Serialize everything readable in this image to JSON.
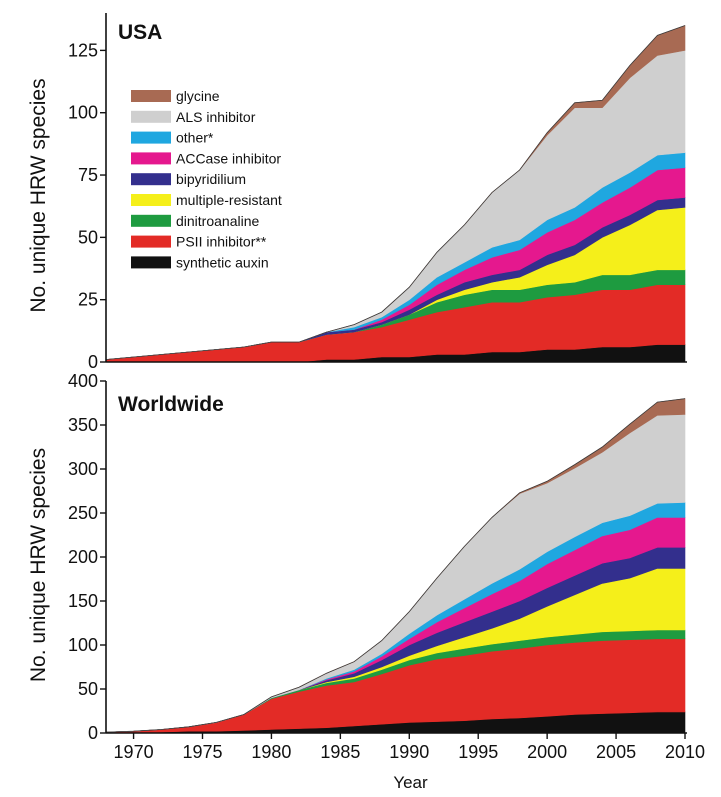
{
  "chart_data": [
    {
      "type": "area",
      "stacked": true,
      "title": "USA",
      "xlabel": "",
      "ylabel": "No. unique HRW species",
      "xlim": [
        1968,
        2010
      ],
      "ylim": [
        0,
        140
      ],
      "yticks": [
        0,
        25,
        50,
        75,
        100,
        125
      ],
      "grid": false,
      "legend_placement": "top-left",
      "x": [
        1968,
        1970,
        1972,
        1974,
        1976,
        1978,
        1980,
        1982,
        1984,
        1986,
        1988,
        1990,
        1992,
        1994,
        1996,
        1998,
        2000,
        2002,
        2004,
        2006,
        2008,
        2010
      ],
      "series": [
        {
          "name": "synthetic auxin",
          "color": "#111111",
          "values": [
            0,
            0,
            0,
            0,
            0,
            0,
            0,
            0,
            1,
            1,
            2,
            2,
            3,
            3,
            4,
            4,
            5,
            5,
            6,
            6,
            7,
            7
          ]
        },
        {
          "name": "PSII inhibitor**",
          "color": "#e32b26",
          "values": [
            1,
            2,
            3,
            4,
            5,
            6,
            8,
            8,
            10,
            11,
            12,
            15,
            17,
            19,
            20,
            20,
            21,
            22,
            23,
            23,
            24,
            24
          ]
        },
        {
          "name": "dinitroanaline",
          "color": "#1e9b40",
          "values": [
            0,
            0,
            0,
            0,
            0,
            0,
            0,
            0,
            0,
            0,
            1,
            2,
            4,
            5,
            5,
            5,
            5,
            5,
            6,
            6,
            6,
            6
          ]
        },
        {
          "name": "multiple-resistant",
          "color": "#f5ef1a",
          "values": [
            0,
            0,
            0,
            0,
            0,
            0,
            0,
            0,
            0,
            0,
            0,
            0,
            1,
            2,
            3,
            5,
            8,
            11,
            15,
            20,
            24,
            25
          ]
        },
        {
          "name": "bipyridilium",
          "color": "#332f8d",
          "values": [
            0,
            0,
            0,
            0,
            0,
            0,
            0,
            0,
            1,
            1,
            1,
            2,
            2,
            3,
            3,
            3,
            4,
            4,
            4,
            4,
            4,
            4
          ]
        },
        {
          "name": "ACCase inhibitor",
          "color": "#e5188e",
          "values": [
            0,
            0,
            0,
            0,
            0,
            0,
            0,
            0,
            0,
            0,
            1,
            2,
            4,
            5,
            7,
            8,
            9,
            10,
            10,
            11,
            12,
            12
          ]
        },
        {
          "name": "other*",
          "color": "#1fa7e0",
          "values": [
            0,
            0,
            0,
            0,
            0,
            0,
            0,
            0,
            0,
            1,
            1,
            2,
            3,
            3,
            4,
            4,
            5,
            5,
            6,
            6,
            6,
            6
          ]
        },
        {
          "name": "ALS inhibitor",
          "color": "#cfcfcf",
          "values": [
            0,
            0,
            0,
            0,
            0,
            0,
            0,
            0,
            0,
            1,
            2,
            5,
            10,
            15,
            22,
            28,
            34,
            40,
            32,
            38,
            40,
            41
          ]
        },
        {
          "name": "glycine",
          "color": "#a86a53",
          "values": [
            0,
            0,
            0,
            0,
            0,
            0,
            0,
            0,
            0,
            0,
            0,
            0,
            0,
            0,
            0,
            0,
            1,
            2,
            3,
            5,
            8,
            10
          ]
        }
      ]
    },
    {
      "type": "area",
      "stacked": true,
      "title": "Worldwide",
      "xlabel": "Year",
      "ylabel": "No. unique HRW species",
      "xlim": [
        1968,
        2010
      ],
      "ylim": [
        0,
        400
      ],
      "yticks": [
        0,
        50,
        100,
        150,
        200,
        250,
        300,
        350,
        400
      ],
      "xticks": [
        1970,
        1975,
        1980,
        1985,
        1990,
        1995,
        2000,
        2005,
        2010
      ],
      "grid": false,
      "x": [
        1968,
        1970,
        1972,
        1974,
        1976,
        1978,
        1980,
        1982,
        1984,
        1986,
        1988,
        1990,
        1992,
        1994,
        1996,
        1998,
        2000,
        2002,
        2004,
        2006,
        2008,
        2010
      ],
      "series": [
        {
          "name": "synthetic auxin",
          "color": "#111111",
          "values": [
            0,
            0,
            1,
            2,
            2,
            3,
            4,
            5,
            6,
            8,
            10,
            12,
            13,
            14,
            16,
            17,
            19,
            21,
            22,
            23,
            24,
            24
          ]
        },
        {
          "name": "PSII inhibitor**",
          "color": "#e32b26",
          "values": [
            1,
            2,
            3,
            5,
            10,
            18,
            35,
            42,
            48,
            50,
            57,
            65,
            71,
            74,
            77,
            79,
            81,
            82,
            83,
            83,
            83,
            83
          ]
        },
        {
          "name": "dinitroanaline",
          "color": "#1e9b40",
          "values": [
            0,
            0,
            0,
            0,
            0,
            0,
            1,
            2,
            3,
            4,
            5,
            6,
            7,
            8,
            8,
            9,
            9,
            9,
            10,
            10,
            10,
            10
          ]
        },
        {
          "name": "multiple-resistant",
          "color": "#f5ef1a",
          "values": [
            0,
            0,
            0,
            0,
            0,
            0,
            0,
            0,
            1,
            2,
            3,
            5,
            8,
            13,
            18,
            25,
            35,
            45,
            55,
            60,
            70,
            70
          ]
        },
        {
          "name": "bipyridilium",
          "color": "#332f8d",
          "values": [
            0,
            0,
            0,
            0,
            0,
            0,
            0,
            0,
            2,
            4,
            8,
            12,
            15,
            17,
            19,
            20,
            21,
            22,
            23,
            23,
            24,
            24
          ]
        },
        {
          "name": "ACCase inhibitor",
          "color": "#e5188e",
          "values": [
            0,
            0,
            0,
            0,
            0,
            0,
            0,
            0,
            1,
            2,
            4,
            7,
            12,
            16,
            20,
            23,
            27,
            29,
            31,
            32,
            34,
            34
          ]
        },
        {
          "name": "other*",
          "color": "#1fa7e0",
          "values": [
            0,
            0,
            0,
            0,
            0,
            0,
            0,
            0,
            1,
            2,
            3,
            6,
            8,
            10,
            12,
            13,
            14,
            15,
            15,
            16,
            16,
            17
          ]
        },
        {
          "name": "ALS inhibitor",
          "color": "#cfcfcf",
          "values": [
            0,
            0,
            0,
            0,
            0,
            0,
            1,
            3,
            6,
            9,
            15,
            25,
            42,
            60,
            75,
            86,
            78,
            78,
            80,
            94,
            100,
            100
          ]
        },
        {
          "name": "glycine",
          "color": "#a86a53",
          "values": [
            0,
            0,
            0,
            0,
            0,
            0,
            0,
            0,
            0,
            0,
            0,
            0,
            0,
            0,
            0,
            1,
            2,
            4,
            6,
            10,
            15,
            18
          ]
        }
      ]
    }
  ],
  "legend_order": [
    "glycine",
    "ALS inhibitor",
    "other*",
    "ACCase inhibitor",
    "bipyridilium",
    "multiple-resistant",
    "dinitroanaline",
    "PSII inhibitor**",
    "synthetic auxin"
  ]
}
